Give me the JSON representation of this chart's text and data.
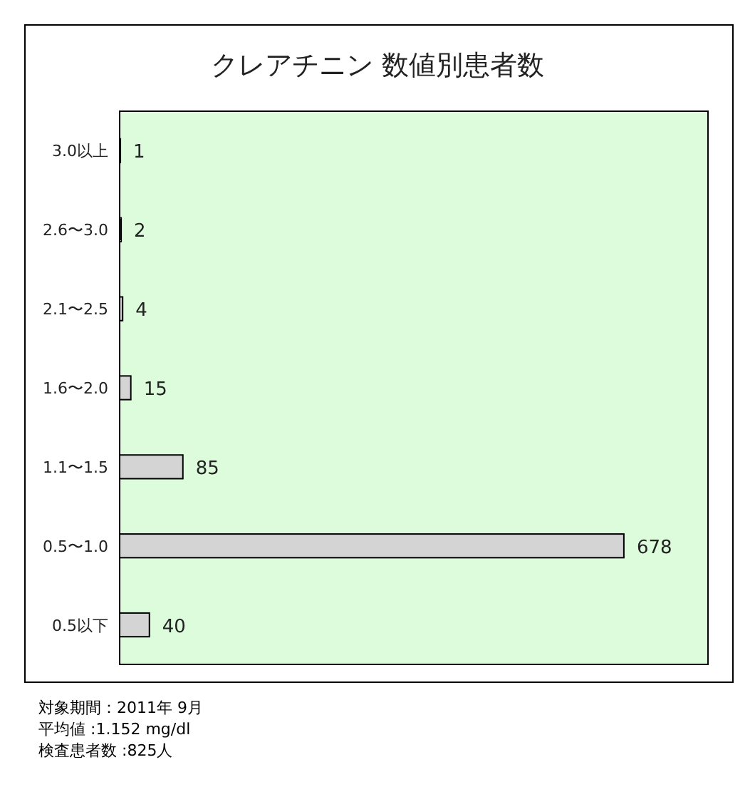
{
  "chart_data": {
    "type": "bar",
    "orientation": "horizontal",
    "title": "クレアチニン 数値別患者数",
    "categories": [
      "3.0以上",
      "2.6〜3.0",
      "2.1〜2.5",
      "1.6〜2.0",
      "1.1〜1.5",
      "0.5〜1.0",
      "0.5以下"
    ],
    "values": [
      1,
      2,
      4,
      15,
      85,
      678,
      40
    ],
    "color": "#d4d4d4",
    "data_labels": true,
    "annotations": [
      "対象期間：2011年 9月",
      "平均値 :1.152 mg/dl",
      "検査患者数 :825人"
    ]
  }
}
